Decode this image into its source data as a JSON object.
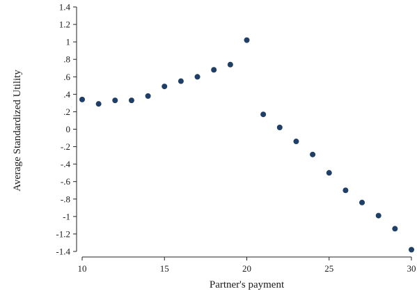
{
  "chart_data": {
    "type": "scatter",
    "title": "",
    "xlabel": "Partner's payment",
    "ylabel": "Average Standardized Utility",
    "xlim": [
      10,
      30
    ],
    "ylim": [
      -1.4,
      1.4
    ],
    "x_ticks": [
      10,
      15,
      20,
      25,
      30
    ],
    "x_tick_labels": [
      "10",
      "15",
      "20",
      "25",
      "30"
    ],
    "y_ticks": [
      -1.4,
      -1.2,
      -1,
      -0.8,
      -0.6,
      -0.4,
      -0.2,
      0,
      0.2,
      0.4,
      0.6,
      0.8,
      1,
      1.2,
      1.4
    ],
    "y_tick_labels": [
      "-1.4",
      "-1.2",
      "-1",
      "-.8",
      "-.6",
      "-.4",
      "-.2",
      "0",
      ".2",
      ".4",
      ".6",
      ".8",
      "1",
      "1.2",
      "1.4"
    ],
    "grid": false,
    "marker_color": "#1f3f66",
    "series": [
      {
        "x": [
          10,
          11,
          12,
          13,
          14,
          15,
          16,
          17,
          18,
          19,
          20,
          21,
          22,
          23,
          24,
          25,
          26,
          27,
          28,
          29,
          30
        ],
        "y": [
          0.34,
          0.29,
          0.33,
          0.33,
          0.38,
          0.49,
          0.55,
          0.6,
          0.68,
          0.74,
          1.02,
          0.17,
          0.02,
          -0.14,
          -0.29,
          -0.5,
          -0.7,
          -0.84,
          -0.99,
          -1.14,
          -1.38
        ]
      }
    ]
  }
}
